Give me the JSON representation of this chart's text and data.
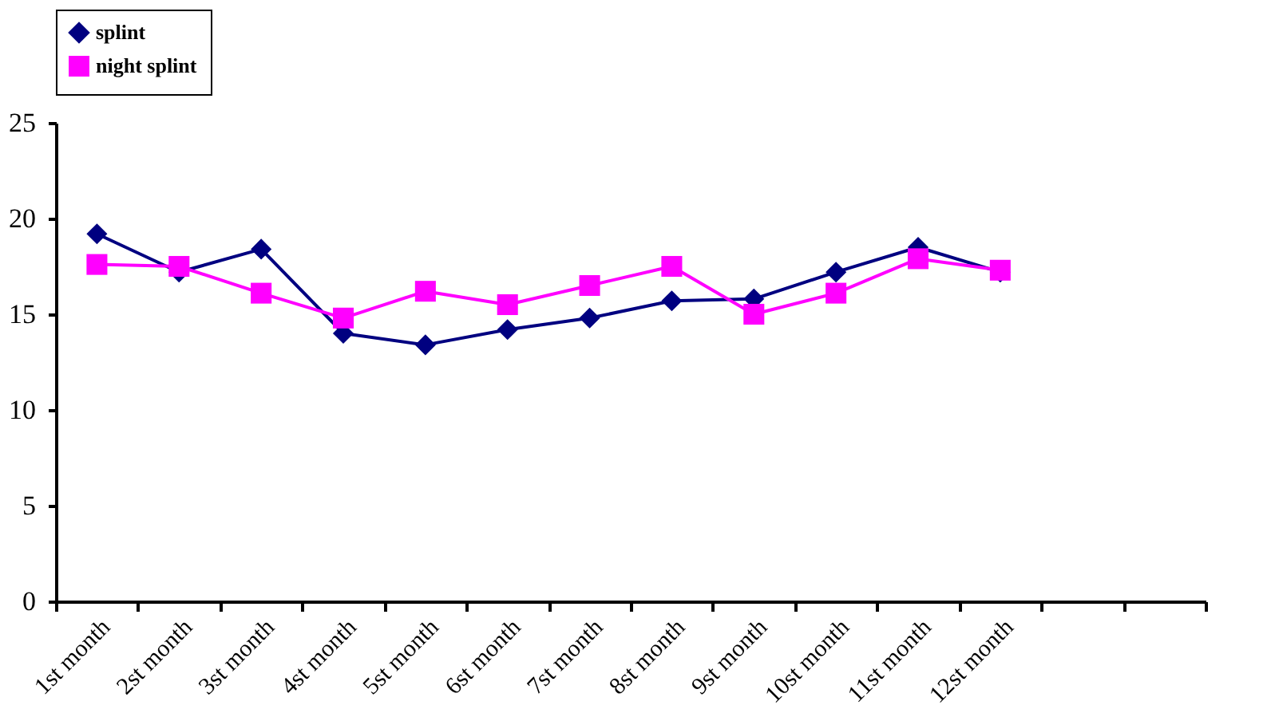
{
  "chart_data": {
    "type": "line",
    "categories": [
      "1st month",
      "2st month",
      "3st month",
      "4st month",
      "5st month",
      "6st month",
      "7st month",
      "8st month",
      "9st month",
      "10st month",
      "11st month",
      "12st month",
      null,
      null
    ],
    "series": [
      {
        "name": "splint",
        "color": "#000080",
        "marker": "diamond",
        "values": [
          19.2,
          17.2,
          18.4,
          14.0,
          13.4,
          14.2,
          14.8,
          15.7,
          15.8,
          17.2,
          18.5,
          17.2,
          null,
          null
        ]
      },
      {
        "name": "night splint",
        "color": "#ff00ff",
        "marker": "square",
        "values": [
          17.6,
          17.5,
          16.1,
          14.8,
          16.2,
          15.5,
          16.5,
          17.5,
          15.0,
          16.1,
          17.9,
          17.3,
          null,
          null
        ]
      }
    ],
    "ylim": [
      0,
      25
    ],
    "yticks": [
      0,
      5,
      10,
      15,
      20,
      25
    ],
    "grid": false,
    "legend": "top",
    "line_style": "solid"
  }
}
